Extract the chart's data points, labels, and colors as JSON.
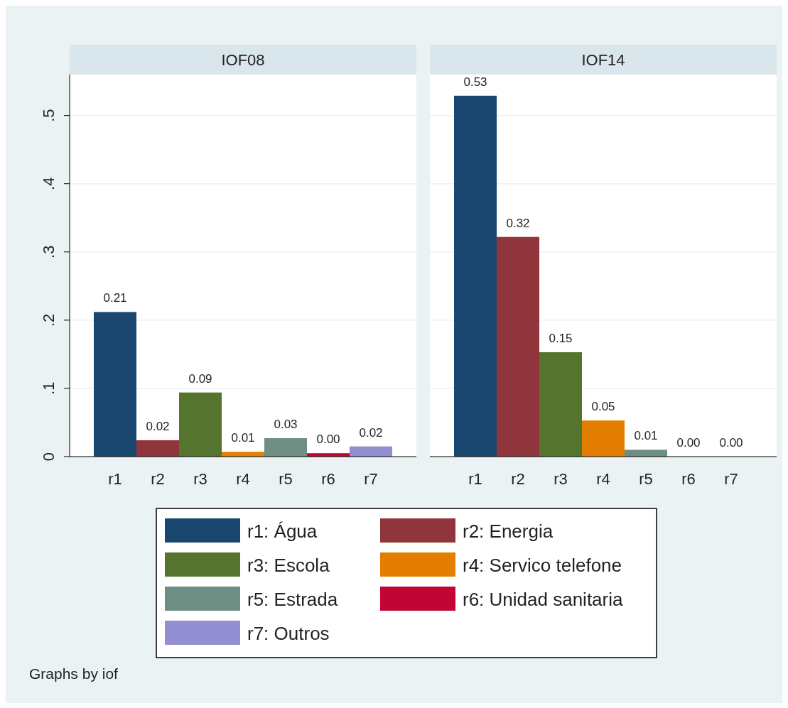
{
  "chart_data": [
    {
      "type": "bar",
      "title": "IOF08",
      "stacked": true,
      "grid": "y",
      "legend": "bottom",
      "categories": [
        "r1",
        "r2",
        "r3",
        "r4",
        "r5",
        "r6",
        "r7"
      ],
      "ylim": [
        0,
        0.56
      ],
      "yticks": [
        0,
        {
          "value": 0.1,
          "label": ".1"
        },
        {
          "value": 0.2,
          "label": ".2"
        },
        {
          "value": 0.3,
          "label": ".3"
        },
        {
          "value": 0.4,
          "label": ".4"
        },
        {
          "value": 0.5,
          "label": ".5"
        }
      ],
      "annotations": [
        "Graphs by iof"
      ],
      "series": [
        {
          "name": "r1: Água",
          "color": "#1a476f",
          "values": [
            0.212,
            null,
            null,
            null,
            null,
            null,
            null
          ],
          "value_labels": [
            "0.21",
            null,
            null,
            null,
            null,
            null,
            null
          ]
        },
        {
          "name": "r2: Energia",
          "color": "#90353b",
          "values": [
            null,
            0.024,
            null,
            null,
            null,
            null,
            null
          ],
          "value_labels": [
            null,
            "0.02",
            null,
            null,
            null,
            null,
            null
          ]
        },
        {
          "name": "r3: Escola",
          "color": "#55752f",
          "values": [
            null,
            null,
            0.094,
            null,
            null,
            null,
            null
          ],
          "value_labels": [
            null,
            null,
            "0.09",
            null,
            null,
            null,
            null
          ]
        },
        {
          "name": "r4: Servico telefone",
          "color": "#e37e00",
          "values": [
            null,
            null,
            null,
            0.007,
            null,
            null,
            null
          ],
          "value_labels": [
            null,
            null,
            null,
            "0.01",
            null,
            null,
            null
          ]
        },
        {
          "name": "r5: Estrada",
          "color": "#6e8e84",
          "values": [
            null,
            null,
            null,
            null,
            0.027,
            null,
            null
          ],
          "value_labels": [
            null,
            null,
            null,
            null,
            "0.03",
            null,
            null
          ]
        },
        {
          "name": "r6: Unidad sanitaria",
          "color": "#c10534",
          "values": [
            null,
            null,
            null,
            null,
            null,
            0.005,
            null
          ],
          "value_labels": [
            null,
            null,
            null,
            null,
            null,
            "0.00",
            null
          ]
        },
        {
          "name": "r7: Outros",
          "color": "#938dd2",
          "values": [
            null,
            null,
            null,
            null,
            null,
            null,
            0.015
          ],
          "value_labels": [
            null,
            null,
            null,
            null,
            null,
            null,
            "0.02"
          ]
        }
      ]
    },
    {
      "type": "bar",
      "title": "IOF14",
      "stacked": true,
      "grid": "y",
      "tick_labels": "x",
      "categories": [
        "r1",
        "r2",
        "r3",
        "r4",
        "r5",
        "r6",
        "r7"
      ],
      "ylim": [
        0,
        0.56
      ],
      "yticks": [
        0,
        0.1,
        0.2,
        0.3,
        0.4,
        0.5
      ],
      "series": [
        {
          "color": "#1a476f",
          "values": [
            0.529,
            null,
            null,
            null,
            null,
            null,
            null
          ],
          "value_labels": [
            "0.53",
            null,
            null,
            null,
            null,
            null,
            null
          ]
        },
        {
          "color": "#90353b",
          "values": [
            null,
            0.322,
            null,
            null,
            null,
            null,
            null
          ],
          "value_labels": [
            null,
            "0.32",
            null,
            null,
            null,
            null,
            null
          ]
        },
        {
          "color": "#55752f",
          "values": [
            null,
            null,
            0.153,
            null,
            null,
            null,
            null
          ],
          "value_labels": [
            null,
            null,
            "0.15",
            null,
            null,
            null,
            null
          ]
        },
        {
          "color": "#e37e00",
          "values": [
            null,
            null,
            null,
            0.053,
            null,
            null,
            null
          ],
          "value_labels": [
            null,
            null,
            null,
            "0.05",
            null,
            null,
            null
          ]
        },
        {
          "color": "#6e8e84",
          "values": [
            null,
            null,
            null,
            null,
            0.01,
            null,
            null
          ],
          "value_labels": [
            null,
            null,
            null,
            null,
            "0.01",
            null,
            null
          ]
        },
        {
          "color": "#c10534",
          "values": [
            null,
            null,
            null,
            null,
            null,
            0,
            null
          ],
          "value_labels": [
            null,
            null,
            null,
            null,
            null,
            "0.00",
            null
          ]
        },
        {
          "color": "#938dd2",
          "values": [
            null,
            null,
            null,
            null,
            null,
            null,
            0
          ],
          "value_labels": [
            null,
            null,
            null,
            null,
            null,
            null,
            "0.00"
          ]
        }
      ]
    }
  ]
}
